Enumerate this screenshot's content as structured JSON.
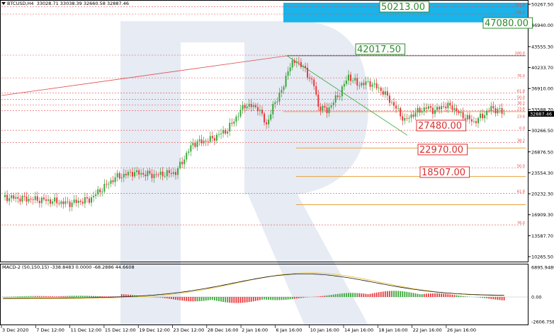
{
  "main_panel": {
    "header": {
      "symbol_timeframe": "BTCUSD,H4",
      "ohlc": "33028.71 33038.39 32660.58 32887.46"
    },
    "y_ticks": [
      "50267.50",
      "46940.00",
      "43555.30",
      "40233.70",
      "36910.00",
      "33588.70",
      "30266.50",
      "26876.50",
      "23554.30",
      "20232.30",
      "16909.30",
      "13587.70",
      "10265.50"
    ],
    "current_price_label": "32887.46",
    "price_level_labels": {
      "level_a": "50213.00",
      "level_b": "47080.00",
      "level_c": "42017.50",
      "level_d": "27480.00",
      "level_e": "22970.00",
      "level_f": "18507.00"
    },
    "fib_labels_upper": [
      "161.8",
      "138.2",
      "100.0",
      "76.0",
      "61.8",
      "50.0",
      "38.2",
      "23.6",
      "0.0"
    ],
    "fib_labels_lower": [
      "38.2",
      "50.0",
      "61.8",
      "76.0"
    ],
    "fib_label_extra": "23.6"
  },
  "macd_panel": {
    "header": "MACD-2 (50,150,15) -338.8483 0.0000 -68.2886 44.6608",
    "y_ticks": [
      "6895.9489",
      "0.00",
      "-2606.758"
    ]
  },
  "x_axis": {
    "labels": [
      "3 Dec 2020",
      "7 Dec 12:00",
      "11 Dec 12:00",
      "15 Dec 12:00",
      "19 Dec 12:00",
      "23 Dec 12:00",
      "28 Dec 16:00",
      "2 Jan 16:00",
      "6 Jan 16:00",
      "10 Jan 16:00",
      "14 Jan 16:00",
      "18 Jan 16:00",
      "22 Jan 16:00",
      "26 Jan 16:00"
    ]
  },
  "colors": {
    "bull": "#3aa63a",
    "bear": "#e8383d",
    "fib_red": "#e34b4b",
    "fib_orange": "#e8a23a",
    "target_box": "#1ab3ea",
    "label_green_text": "#2e8b2e",
    "label_red_text": "#d83030",
    "macd_signal": "#f1c84a",
    "macd_main": "#1a1a1a",
    "watermark": "#e6ebf4"
  },
  "icons": [
    "dropdown-arrow-icon"
  ]
}
